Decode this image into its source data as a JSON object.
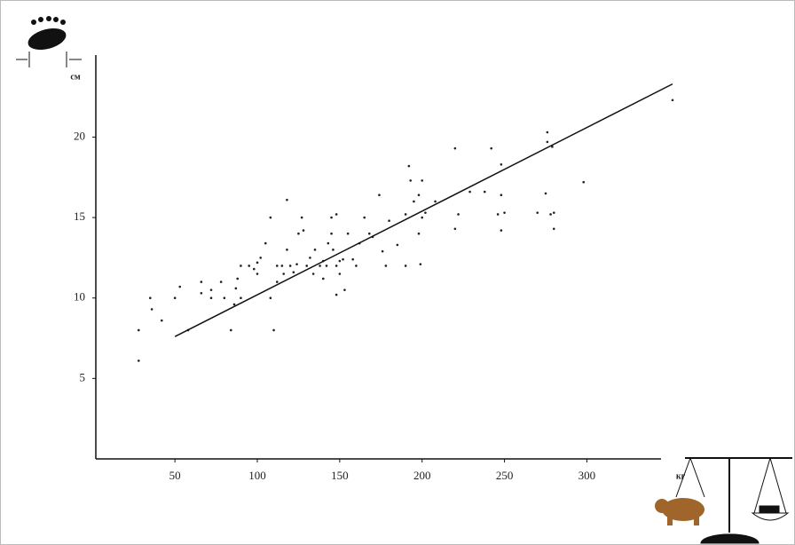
{
  "chart_data": {
    "type": "scatter",
    "y_label": "см",
    "x_label": "кг",
    "xlim": [
      2,
      345
    ],
    "ylim": [
      0,
      25.1
    ],
    "xticks": [
      50,
      100,
      150,
      200,
      250,
      300
    ],
    "yticks": [
      5,
      10,
      15,
      20
    ],
    "color": "#222222",
    "x": [
      28,
      28,
      35,
      36,
      42,
      50,
      53,
      58,
      66,
      66,
      72,
      72,
      78,
      80,
      84,
      86,
      87,
      88,
      90,
      90,
      95,
      98,
      100,
      100,
      102,
      105,
      108,
      108,
      110,
      112,
      112,
      115,
      116,
      118,
      118,
      120,
      122,
      124,
      125,
      127,
      128,
      130,
      132,
      134,
      135,
      138,
      140,
      140,
      142,
      143,
      145,
      145,
      146,
      148,
      148,
      148,
      150,
      150,
      152,
      153,
      155,
      158,
      160,
      162,
      165,
      168,
      170,
      174,
      176,
      178,
      180,
      185,
      190,
      190,
      192,
      193,
      195,
      198,
      198,
      199,
      200,
      200,
      202,
      208,
      220,
      220,
      222,
      229,
      238,
      242,
      246,
      248,
      248,
      248,
      250,
      270,
      275,
      276,
      276,
      278,
      279,
      280,
      280,
      298,
      352
    ],
    "values": [
      6.1,
      8,
      10,
      9.3,
      8.6,
      10,
      10.7,
      8,
      11,
      10.3,
      10.5,
      10,
      11,
      10,
      8,
      9.6,
      10.6,
      11.2,
      12,
      10,
      12,
      11.8,
      11.5,
      12.2,
      12.5,
      13.4,
      15,
      10,
      8,
      11,
      12,
      12,
      11.5,
      16.1,
      13,
      12,
      11.6,
      12.1,
      14,
      15,
      14.2,
      12,
      12.5,
      11.5,
      13,
      12,
      11.2,
      12.3,
      12,
      13.4,
      14,
      15,
      13,
      12,
      15.2,
      10.2,
      11.5,
      12.3,
      12.4,
      10.5,
      14,
      12.4,
      12,
      13.4,
      15,
      14,
      13.8,
      16.4,
      12.9,
      12,
      14.8,
      13.3,
      12,
      15.2,
      18.2,
      17.3,
      16,
      16.4,
      14,
      12.1,
      15,
      17.3,
      15.3,
      16,
      14.3,
      19.3,
      15.2,
      16.6,
      16.6,
      19.3,
      15.2,
      14.2,
      16.4,
      18.3,
      15.3,
      15.3,
      16.5,
      19.7,
      20.3,
      15.2,
      19.4,
      14.3,
      15.3,
      17.2,
      22.3
    ],
    "fit_line": {
      "color": "#111111",
      "x": [
        50,
        352
      ],
      "y": [
        7.6,
        23.3
      ]
    }
  }
}
